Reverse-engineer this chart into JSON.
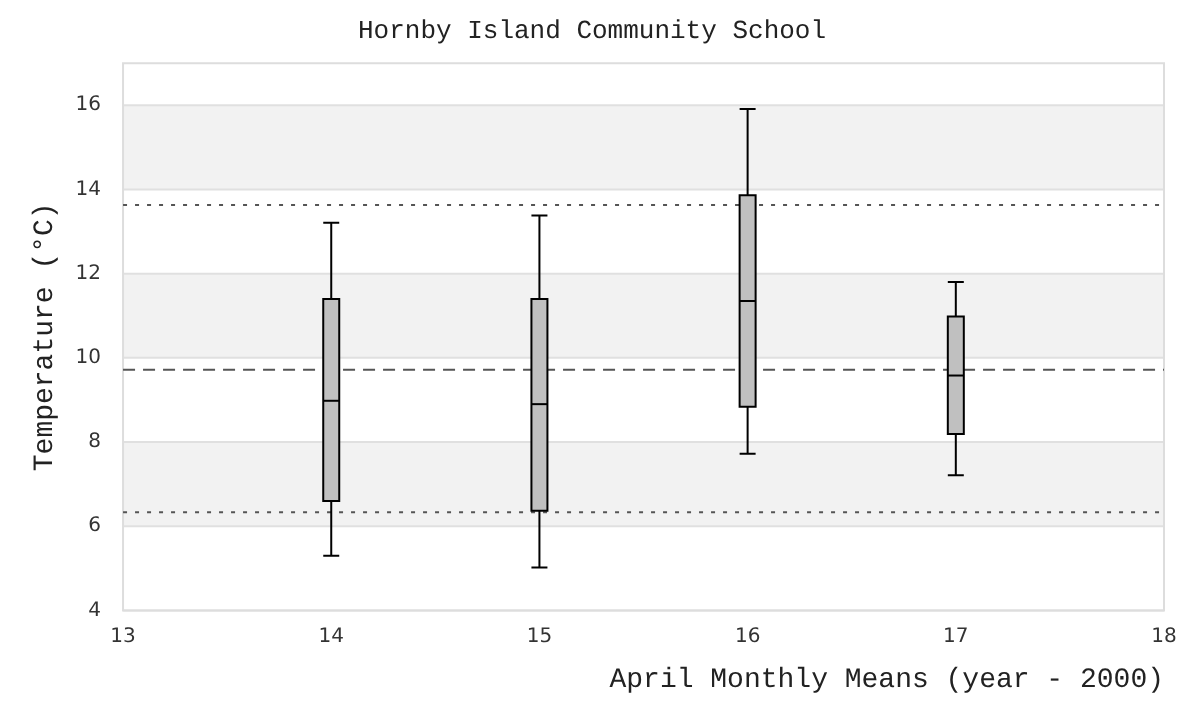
{
  "chart_data": {
    "type": "box",
    "title": "Hornby Island Community School",
    "xlabel": "April Monthly Means (year - 2000)",
    "ylabel": "Temperature (°C)",
    "x": [
      14,
      15,
      16,
      17
    ],
    "color": "#c0c0c0",
    "boxes": [
      {
        "low": 5.3,
        "q1": 6.6,
        "median": 8.98,
        "q3": 11.4,
        "high": 13.21
      },
      {
        "low": 5.02,
        "q1": 6.37,
        "median": 8.9,
        "q3": 11.4,
        "high": 13.38
      },
      {
        "low": 7.72,
        "q1": 8.84,
        "median": 11.35,
        "q3": 13.86,
        "high": 15.91
      },
      {
        "low": 7.21,
        "q1": 8.19,
        "median": 9.58,
        "q3": 10.98,
        "high": 11.8
      }
    ],
    "xlim": [
      13,
      18
    ],
    "xticks": [
      13,
      14,
      15,
      16,
      17,
      18
    ],
    "ylim": [
      4,
      17
    ],
    "yticks": [
      4,
      6,
      8,
      10,
      12,
      14,
      16
    ],
    "ref_lines": [
      {
        "axis": "y",
        "value": 13.63,
        "color": "#555555",
        "line_style": "dotted"
      },
      {
        "axis": "y",
        "value": 9.72,
        "color": "#555555",
        "line_style": "dashed"
      },
      {
        "axis": "y",
        "value": 6.33,
        "color": "#555555",
        "line_style": "dotted"
      }
    ],
    "grid": "y"
  }
}
